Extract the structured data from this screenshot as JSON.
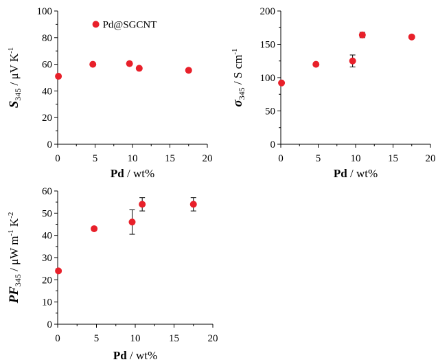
{
  "chart_data": [
    {
      "type": "scatter",
      "xlim": [
        0,
        20
      ],
      "ylim": [
        0,
        100
      ],
      "xticks": [
        "0",
        "5",
        "10",
        "15",
        "20"
      ],
      "yticks": [
        "0",
        "20",
        "40",
        "60",
        "80",
        "100"
      ],
      "xlabel": {
        "bold": "Pd",
        "rest": " / wt%"
      },
      "ylabel": {
        "bold": "S",
        "sub": "345",
        "rest": " / μV K",
        "sup": "-1"
      },
      "legend": {
        "label": "Pd@SGCNT",
        "position": "top-center"
      },
      "color": "#e8202a",
      "series": [
        {
          "name": "Pd@SGCNT",
          "points": [
            {
              "x": 0.1,
              "y": 51
            },
            {
              "x": 4.7,
              "y": 60
            },
            {
              "x": 9.6,
              "y": 60.5
            },
            {
              "x": 10.9,
              "y": 57
            },
            {
              "x": 17.5,
              "y": 55.5
            }
          ]
        }
      ]
    },
    {
      "type": "scatter",
      "xlim": [
        0,
        20
      ],
      "ylim": [
        0,
        200
      ],
      "xticks": [
        "0",
        "5",
        "10",
        "15",
        "20"
      ],
      "yticks": [
        "0",
        "50",
        "100",
        "150",
        "200"
      ],
      "xlabel": {
        "bold": "Pd",
        "rest": " / wt%"
      },
      "ylabel": {
        "bold": "σ",
        "sub": "345",
        "rest": " / S cm",
        "sup": "-1"
      },
      "color": "#e8202a",
      "series": [
        {
          "points": [
            {
              "x": 0.1,
              "y": 92
            },
            {
              "x": 4.7,
              "y": 120
            },
            {
              "x": 9.6,
              "y": 125,
              "err": 9
            },
            {
              "x": 10.9,
              "y": 164,
              "err": 4
            },
            {
              "x": 17.5,
              "y": 161
            }
          ]
        }
      ]
    },
    {
      "type": "scatter",
      "xlim": [
        0,
        20
      ],
      "ylim": [
        0,
        60
      ],
      "xticks": [
        "0",
        "5",
        "10",
        "15",
        "20"
      ],
      "yticks": [
        "0",
        "10",
        "20",
        "30",
        "40",
        "50",
        "60"
      ],
      "xlabel": {
        "bold": "Pd",
        "rest": " / wt%"
      },
      "ylabel": {
        "bold": "PF",
        "sub": "345",
        "rest": "  / μW m",
        "sup": "-1",
        "rest2": " K",
        "sup2": "-2"
      },
      "color": "#e8202a",
      "series": [
        {
          "points": [
            {
              "x": 0.1,
              "y": 24
            },
            {
              "x": 4.7,
              "y": 43
            },
            {
              "x": 9.6,
              "y": 46,
              "err": 5.5
            },
            {
              "x": 10.9,
              "y": 54,
              "err": 3
            },
            {
              "x": 17.5,
              "y": 54,
              "err": 3
            }
          ]
        }
      ]
    }
  ]
}
